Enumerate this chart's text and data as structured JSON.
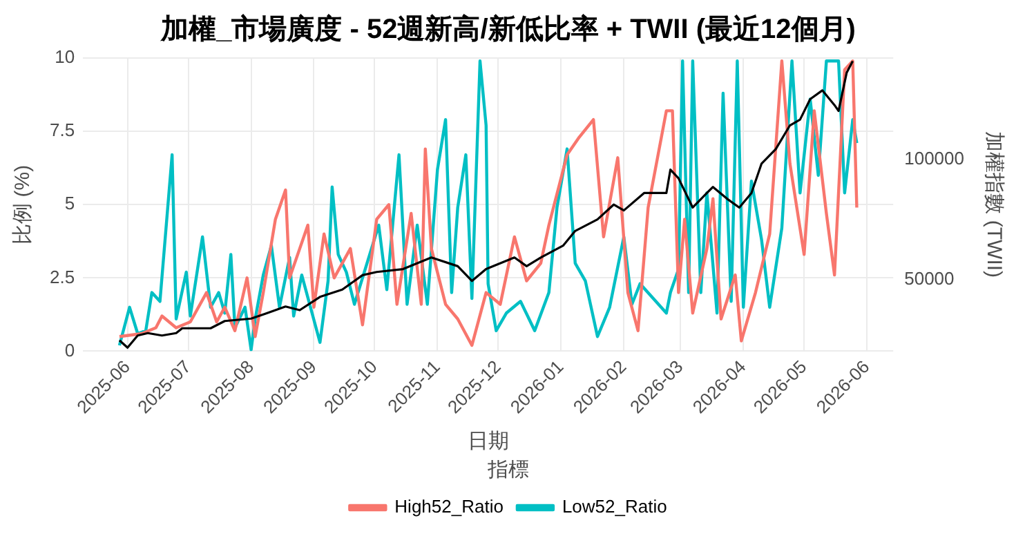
{
  "chart_data": {
    "type": "line",
    "title": "加權_市場廣度 - 52週新高/新低比率 + TWII (最近12個月)",
    "xlabel": "日期",
    "ylabel": "比例 (%)",
    "y2label": "加權指數 (TWII)",
    "legend_title": "指標",
    "legend": "bottom",
    "grid": true,
    "line_style": "solid",
    "marker": "none",
    "xlim": [
      "2025-05-10",
      "2026-06-14"
    ],
    "xticks": [
      "2025-06",
      "2025-07",
      "2025-08",
      "2025-09",
      "2025-10",
      "2025-11",
      "2025-12",
      "2026-01",
      "2026-02",
      "2026-03",
      "2026-04",
      "2026-05",
      "2026-06"
    ],
    "ylim": [
      0,
      10
    ],
    "yticks": [
      0,
      2.5,
      5,
      7.5,
      10
    ],
    "y2lim": [
      20500,
      141900
    ],
    "y2ticks": [
      50000,
      100000
    ],
    "series": [
      {
        "name": "High52_Ratio",
        "color": "#f8766d",
        "x": [
          "2025-05-28",
          "2025-06-08",
          "2025-06-15",
          "2025-06-18",
          "2025-06-25",
          "2025-07-02",
          "2025-07-10",
          "2025-07-15",
          "2025-07-19",
          "2025-07-24",
          "2025-07-30",
          "2025-08-03",
          "2025-08-07",
          "2025-08-13",
          "2025-08-18",
          "2025-08-20",
          "2025-08-29",
          "2025-09-01",
          "2025-09-06",
          "2025-09-11",
          "2025-09-19",
          "2025-09-25",
          "2025-10-02",
          "2025-10-08",
          "2025-10-12",
          "2025-10-19",
          "2025-10-24",
          "2025-10-26",
          "2025-10-29",
          "2025-11-05",
          "2025-11-11",
          "2025-11-18",
          "2025-11-25",
          "2025-12-02",
          "2025-12-09",
          "2025-12-15",
          "2025-12-22",
          "2025-12-26",
          "2026-01-04",
          "2026-01-10",
          "2026-01-17",
          "2026-01-22",
          "2026-01-29",
          "2026-02-03",
          "2026-02-08",
          "2026-02-13",
          "2026-02-22",
          "2026-02-25",
          "2026-02-28",
          "2026-03-03",
          "2026-03-07",
          "2026-03-14",
          "2026-03-17",
          "2026-03-21",
          "2026-03-28",
          "2026-03-31",
          "2026-04-07",
          "2026-04-14",
          "2026-04-20",
          "2026-04-24",
          "2026-05-01",
          "2026-05-06",
          "2026-05-12",
          "2026-05-16",
          "2026-05-21",
          "2026-05-25",
          "2026-05-27"
        ],
        "values": [
          0.5,
          0.6,
          0.8,
          1.2,
          0.8,
          1.0,
          2.0,
          1.0,
          1.5,
          0.7,
          2.5,
          0.5,
          2.0,
          4.5,
          5.5,
          2.5,
          4.3,
          1.5,
          4.0,
          2.5,
          3.5,
          0.9,
          4.5,
          5.0,
          1.6,
          4.7,
          1.6,
          6.9,
          3.5,
          1.6,
          1.1,
          0.2,
          2.0,
          1.6,
          3.9,
          2.4,
          3.0,
          4.3,
          6.7,
          7.3,
          7.9,
          3.9,
          6.6,
          2.0,
          0.7,
          4.9,
          8.2,
          8.2,
          2.0,
          4.5,
          1.3,
          3.5,
          5.2,
          1.1,
          2.6,
          0.35,
          2.0,
          4.0,
          9.9,
          6.4,
          3.3,
          8.2,
          4.7,
          2.6,
          9.6,
          9.9,
          4.9
        ]
      },
      {
        "name": "Low52_Ratio",
        "color": "#00bfc4",
        "x": [
          "2025-05-28",
          "2025-06-02",
          "2025-06-06",
          "2025-06-10",
          "2025-06-13",
          "2025-06-17",
          "2025-06-23",
          "2025-06-25",
          "2025-06-30",
          "2025-07-02",
          "2025-07-08",
          "2025-07-12",
          "2025-07-16",
          "2025-07-19",
          "2025-07-22",
          "2025-07-24",
          "2025-07-29",
          "2025-08-01",
          "2025-08-03",
          "2025-08-07",
          "2025-08-11",
          "2025-08-15",
          "2025-08-20",
          "2025-08-22",
          "2025-08-26",
          "2025-09-04",
          "2025-09-08",
          "2025-09-10",
          "2025-09-13",
          "2025-09-17",
          "2025-09-21",
          "2025-10-03",
          "2025-10-07",
          "2025-10-13",
          "2025-10-17",
          "2025-10-22",
          "2025-10-27",
          "2025-11-01",
          "2025-11-05",
          "2025-11-08",
          "2025-11-11",
          "2025-11-15",
          "2025-11-18",
          "2025-11-22",
          "2025-11-25",
          "2025-11-26",
          "2025-11-30",
          "2025-12-05",
          "2025-12-12",
          "2025-12-19",
          "2025-12-26",
          "2025-12-30",
          "2026-01-04",
          "2026-01-08",
          "2026-01-13",
          "2026-01-19",
          "2026-01-25",
          "2026-02-01",
          "2026-02-05",
          "2026-02-09",
          "2026-02-22",
          "2026-02-24",
          "2026-02-28",
          "2026-03-02",
          "2026-03-05",
          "2026-03-07",
          "2026-03-11",
          "2026-03-14",
          "2026-03-19",
          "2026-03-22",
          "2026-03-26",
          "2026-03-29",
          "2026-04-01",
          "2026-04-05",
          "2026-04-10",
          "2026-04-14",
          "2026-04-20",
          "2026-04-25",
          "2026-04-29",
          "2026-05-04",
          "2026-05-08",
          "2026-05-12",
          "2026-05-18",
          "2026-05-21",
          "2026-05-25",
          "2026-05-27"
        ],
        "values": [
          0.2,
          1.5,
          0.6,
          0.7,
          2.0,
          1.7,
          6.7,
          1.1,
          2.7,
          1.2,
          3.9,
          1.5,
          2.0,
          1.3,
          3.3,
          0.8,
          1.5,
          0.05,
          1.1,
          2.6,
          3.6,
          1.5,
          3.2,
          1.2,
          2.6,
          0.3,
          2.4,
          5.6,
          3.3,
          2.7,
          1.6,
          4.3,
          2.1,
          6.7,
          1.6,
          4.3,
          1.6,
          6.2,
          7.9,
          2.0,
          4.9,
          6.7,
          1.8,
          9.9,
          7.7,
          2.3,
          0.7,
          1.3,
          1.7,
          0.7,
          2.0,
          4.9,
          6.9,
          3.0,
          2.4,
          0.5,
          1.5,
          3.9,
          1.6,
          2.3,
          1.3,
          2.0,
          2.8,
          9.9,
          2.0,
          9.9,
          2.0,
          5.4,
          1.3,
          8.8,
          1.7,
          9.9,
          1.5,
          5.8,
          3.8,
          1.5,
          4.2,
          9.9,
          5.4,
          8.6,
          6.0,
          9.9,
          9.9,
          5.4,
          7.9,
          7.1
        ]
      },
      {
        "color": "#000000",
        "axis": "y2",
        "x": [
          "2025-05-28",
          "2025-06-01",
          "2025-06-06",
          "2025-06-11",
          "2025-06-18",
          "2025-06-25",
          "2025-06-28",
          "2025-07-12",
          "2025-07-19",
          "2025-08-01",
          "2025-08-08",
          "2025-08-18",
          "2025-08-25",
          "2025-09-04",
          "2025-09-15",
          "2025-09-25",
          "2025-10-02",
          "2025-10-15",
          "2025-10-29",
          "2025-11-11",
          "2025-11-18",
          "2025-11-25",
          "2025-12-09",
          "2025-12-15",
          "2025-12-22",
          "2026-01-02",
          "2026-01-08",
          "2026-01-19",
          "2026-01-27",
          "2026-02-01",
          "2026-02-11",
          "2026-02-22",
          "2026-02-24",
          "2026-02-28",
          "2026-03-07",
          "2026-03-14",
          "2026-03-17",
          "2026-03-24",
          "2026-03-30",
          "2026-04-05",
          "2026-04-10",
          "2026-04-17",
          "2026-04-24",
          "2026-04-29",
          "2026-05-04",
          "2026-05-10",
          "2026-05-16",
          "2026-05-18",
          "2026-05-22",
          "2026-05-25"
        ],
        "values": [
          25000,
          22000,
          27000,
          28000,
          27000,
          28000,
          30000,
          30000,
          33000,
          34000,
          36000,
          39000,
          37500,
          43000,
          46000,
          52000,
          53300,
          54500,
          59300,
          55700,
          49600,
          54500,
          59300,
          55700,
          59300,
          64200,
          70300,
          75100,
          81200,
          78800,
          86000,
          86000,
          95700,
          92100,
          80000,
          86000,
          88500,
          83600,
          80000,
          86000,
          98200,
          104200,
          114000,
          116400,
          124900,
          128500,
          122400,
          120000,
          135800,
          140600
        ]
      }
    ]
  }
}
